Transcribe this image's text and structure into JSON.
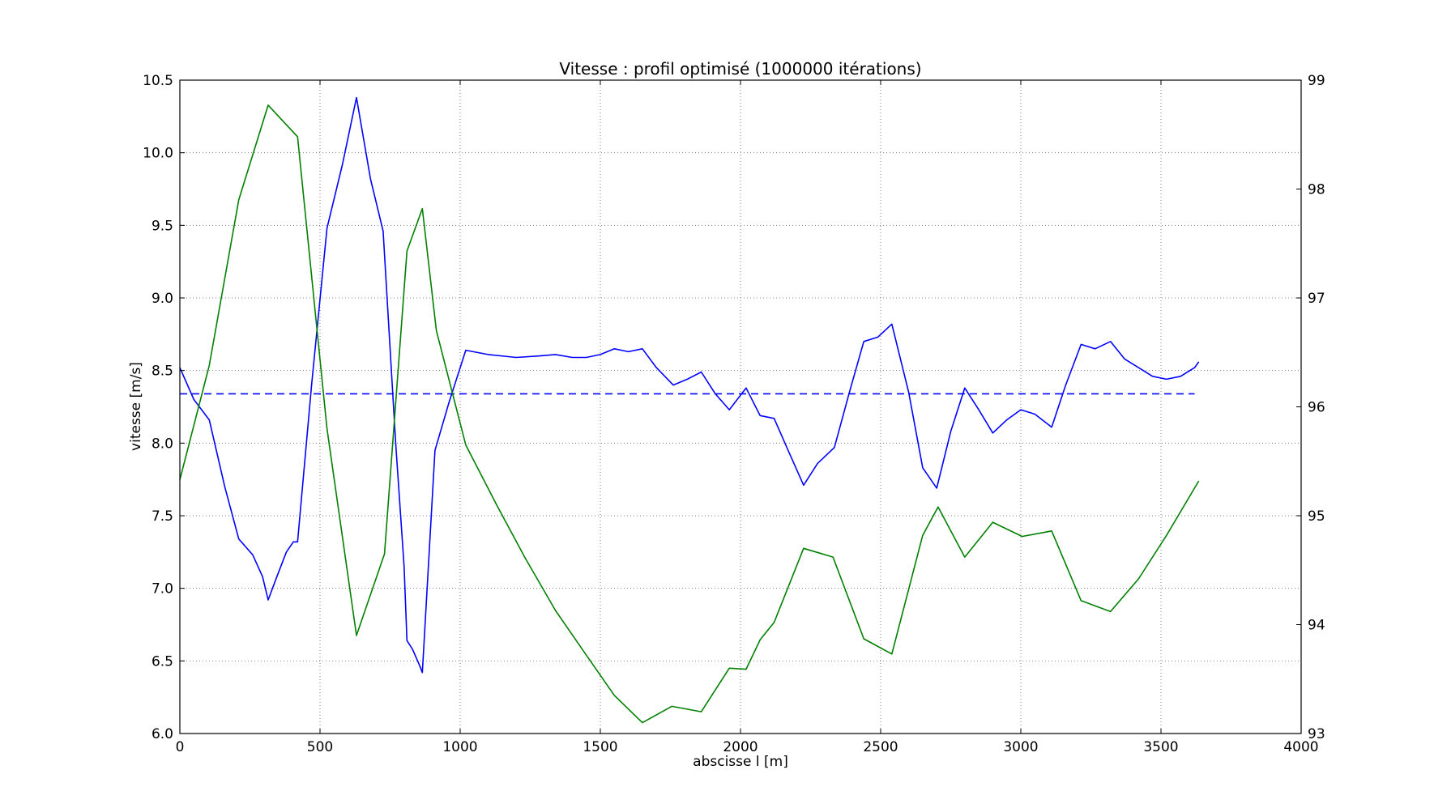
{
  "chart_data": {
    "type": "line",
    "title": "Vitesse : profil optimisé (1000000 itérations)",
    "xlabel": "abscisse l [m]",
    "ylabel": "vitesse [m/s]",
    "y2label": "",
    "xlim": [
      0,
      4000
    ],
    "ylim": [
      6.0,
      10.5
    ],
    "y2lim": [
      93,
      99
    ],
    "grid": true,
    "x_ticks": [
      "0",
      "500",
      "1000",
      "1500",
      "2000",
      "2500",
      "3000",
      "3500",
      "4000"
    ],
    "y_ticks": [
      "6.0",
      "6.5",
      "7.0",
      "7.5",
      "8.0",
      "8.5",
      "9.0",
      "9.5",
      "10.0",
      "10.5"
    ],
    "y2_ticks": [
      "93",
      "94",
      "95",
      "96",
      "97",
      "98",
      "99"
    ],
    "colors": {
      "blue": "#0000ff",
      "green": "#008000",
      "grid": "#808080"
    },
    "series": [
      {
        "axis": "left",
        "color": "#0000ff",
        "dash": "solid",
        "x": [
          0,
          50,
          105,
          160,
          210,
          260,
          295,
          315,
          350,
          380,
          405,
          420,
          470,
          525,
          580,
          630,
          680,
          725,
          770,
          800,
          810,
          830,
          855,
          865,
          910,
          960,
          1020,
          1100,
          1200,
          1280,
          1340,
          1400,
          1450,
          1500,
          1550,
          1600,
          1650,
          1700,
          1760,
          1810,
          1860,
          1910,
          1960,
          2020,
          2070,
          2120,
          2170,
          2225,
          2275,
          2335,
          2390,
          2440,
          2490,
          2540,
          2600,
          2650,
          2700,
          2750,
          2800,
          2850,
          2900,
          2950,
          3000,
          3050,
          3110,
          3160,
          3215,
          3265,
          3320,
          3370,
          3420,
          3470,
          3520,
          3570,
          3620,
          3635
        ],
        "y": [
          8.52,
          8.3,
          8.16,
          7.7,
          7.34,
          7.23,
          7.08,
          6.92,
          7.1,
          7.25,
          7.32,
          7.32,
          8.4,
          9.48,
          9.92,
          10.38,
          9.82,
          9.46,
          8.0,
          7.15,
          6.64,
          6.58,
          6.47,
          6.42,
          7.95,
          8.28,
          8.64,
          8.61,
          8.59,
          8.6,
          8.61,
          8.59,
          8.59,
          8.61,
          8.65,
          8.63,
          8.65,
          8.52,
          8.4,
          8.44,
          8.49,
          8.34,
          8.23,
          8.38,
          8.19,
          8.17,
          7.95,
          7.71,
          7.86,
          7.97,
          8.36,
          8.7,
          8.73,
          8.82,
          8.35,
          7.83,
          7.69,
          8.08,
          8.38,
          8.23,
          8.07,
          8.16,
          8.23,
          8.2,
          8.11,
          8.4,
          8.68,
          8.65,
          8.7,
          8.58,
          8.52,
          8.46,
          8.44,
          8.46,
          8.52,
          8.56
        ]
      },
      {
        "axis": "left",
        "color": "#0000ff",
        "dash": "dashed",
        "x": [
          0,
          3620
        ],
        "y": [
          8.34,
          8.34
        ]
      },
      {
        "axis": "right",
        "color": "#008000",
        "dash": "solid",
        "x": [
          0,
          105,
          210,
          315,
          420,
          525,
          630,
          730,
          810,
          865,
          915,
          1020,
          1130,
          1230,
          1340,
          1450,
          1550,
          1650,
          1755,
          1860,
          1960,
          2020,
          2070,
          2120,
          2225,
          2330,
          2440,
          2540,
          2650,
          2705,
          2800,
          2900,
          3005,
          3110,
          3215,
          3320,
          3420,
          3520,
          3635
        ],
        "y": [
          95.33,
          96.38,
          97.9,
          98.77,
          98.48,
          95.8,
          93.9,
          94.65,
          97.43,
          97.82,
          96.7,
          95.65,
          95.1,
          94.62,
          94.13,
          93.72,
          93.35,
          93.1,
          93.25,
          93.2,
          93.6,
          93.59,
          93.86,
          94.02,
          94.7,
          94.62,
          93.87,
          93.73,
          94.82,
          95.08,
          94.62,
          94.94,
          94.81,
          94.86,
          94.22,
          94.12,
          94.42,
          94.82,
          95.32
        ]
      }
    ]
  }
}
